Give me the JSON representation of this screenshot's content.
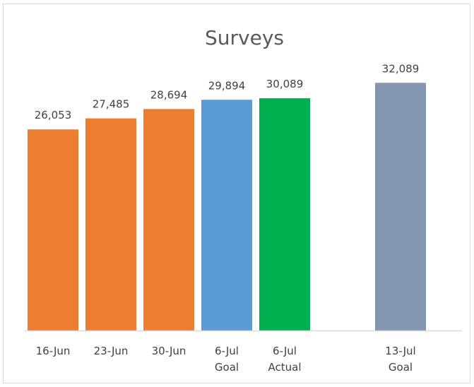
{
  "chart_data": {
    "type": "bar",
    "title": "Surveys",
    "xlabel": "",
    "ylabel": "",
    "ylim": [
      0,
      35000
    ],
    "grid": false,
    "legend": "none",
    "bars": [
      {
        "label_lines": [
          "16-Jun"
        ],
        "value": 26053,
        "value_label": "26,053",
        "color": "#ED7D31",
        "gap_before": false
      },
      {
        "label_lines": [
          "23-Jun"
        ],
        "value": 27485,
        "value_label": "27,485",
        "color": "#ED7D31",
        "gap_before": false
      },
      {
        "label_lines": [
          "30-Jun"
        ],
        "value": 28694,
        "value_label": "28,694",
        "color": "#ED7D31",
        "gap_before": false
      },
      {
        "label_lines": [
          "6-Jul",
          "Goal"
        ],
        "value": 29894,
        "value_label": "29,894",
        "color": "#5B9BD5",
        "gap_before": false
      },
      {
        "label_lines": [
          "6-Jul",
          "Actual"
        ],
        "value": 30089,
        "value_label": "30,089",
        "color": "#00B050",
        "gap_before": false
      },
      {
        "label_lines": [
          "13-Jul",
          "Goal"
        ],
        "value": 32089,
        "value_label": "32,089",
        "color": "#8497B0",
        "gap_before": true
      }
    ]
  }
}
